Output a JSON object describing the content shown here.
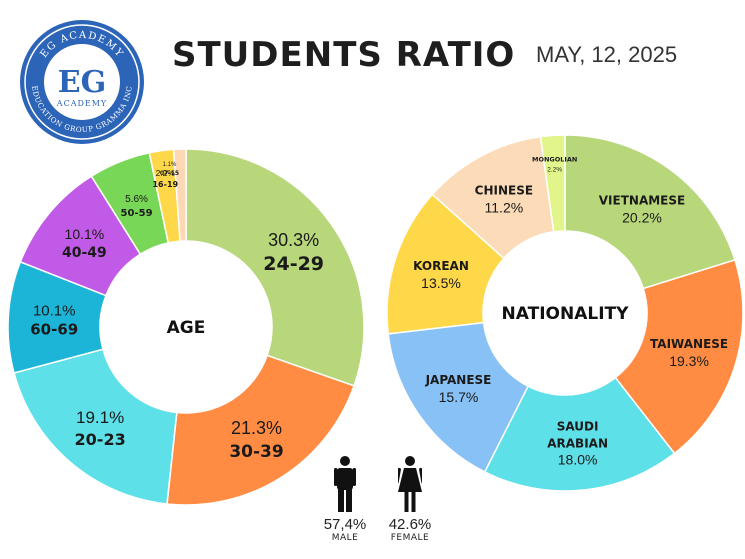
{
  "header": {
    "title": "STUDENTS RATIO",
    "date": "MAY, 12, 2025"
  },
  "logo": {
    "main_text": "EG",
    "sub_text": "ACADEMY",
    "ring_top": "EG ACADEMY",
    "ring_bottom": "EDUCATION GROUP GRAMMA INC"
  },
  "gender": {
    "male_percent": "57,4%",
    "male_label": "MALE",
    "female_percent": "42.6%",
    "female_label": "FEMALE",
    "male_icon": "male-person-icon",
    "female_icon": "female-person-icon"
  },
  "chart_data": [
    {
      "type": "pie",
      "center_label": "AGE",
      "slices": [
        {
          "label": "24-29",
          "value": 30.3,
          "value_text": "30.3%",
          "color": "#b8d67a"
        },
        {
          "label": "30-39",
          "value": 21.3,
          "value_text": "21.3%",
          "color": "#ff8c42"
        },
        {
          "label": "20-23",
          "value": 19.1,
          "value_text": "19.1%",
          "color": "#5ee0e8"
        },
        {
          "label": "60-69",
          "value": 10.1,
          "value_text": "10.1%",
          "color": "#1cb5d8"
        },
        {
          "label": "40-49",
          "value": 10.1,
          "value_text": "10.1%",
          "color": "#c15ae6"
        },
        {
          "label": "50-59",
          "value": 5.6,
          "value_text": "5.6%",
          "color": "#79d757"
        },
        {
          "label": "16-19",
          "value": 2.2,
          "value_text": "2.2%",
          "color": "#ffd84a"
        },
        {
          "label": "07-15",
          "value": 1.1,
          "value_text": "1.1%",
          "color": "#fcd8b4"
        }
      ]
    },
    {
      "type": "pie",
      "center_label": "NATIONALITY",
      "slices": [
        {
          "label": "VIETNAMESE",
          "value": 20.2,
          "value_text": "20.2%",
          "color": "#b8d67a"
        },
        {
          "label": "TAIWANESE",
          "value": 19.3,
          "value_text": "19.3%",
          "color": "#ff8c42"
        },
        {
          "label": "SAUDI\nARABIAN",
          "value": 18.0,
          "value_text": "18.0%",
          "color": "#5ee0e8"
        },
        {
          "label": "JAPANESE",
          "value": 15.7,
          "value_text": "15.7%",
          "color": "#88c1f5"
        },
        {
          "label": "KOREAN",
          "value": 13.5,
          "value_text": "13.5%",
          "color": "#ffd84a"
        },
        {
          "label": "CHINESE",
          "value": 11.2,
          "value_text": "11.2%",
          "color": "#fcdcb8"
        },
        {
          "label": "MONGOLIAN",
          "value": 2.2,
          "value_text": "2.2%",
          "color": "#e2f58a"
        }
      ]
    }
  ]
}
